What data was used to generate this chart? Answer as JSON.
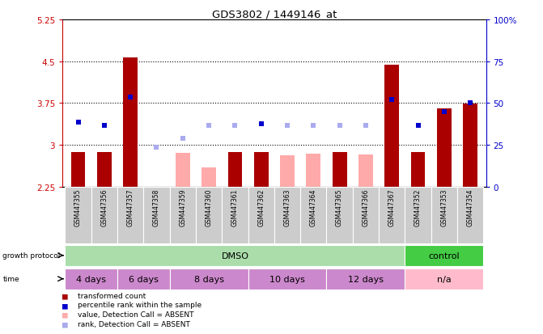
{
  "title": "GDS3802 / 1449146_at",
  "samples": [
    "GSM447355",
    "GSM447356",
    "GSM447357",
    "GSM447358",
    "GSM447359",
    "GSM447360",
    "GSM447361",
    "GSM447362",
    "GSM447363",
    "GSM447364",
    "GSM447365",
    "GSM447366",
    "GSM447367",
    "GSM447352",
    "GSM447353",
    "GSM447354"
  ],
  "transformed_count": [
    2.87,
    2.87,
    4.57,
    2.25,
    2.85,
    2.6,
    2.87,
    2.87,
    2.82,
    2.84,
    2.87,
    2.83,
    4.44,
    2.87,
    3.65,
    3.74
  ],
  "tc_absent": [
    false,
    false,
    false,
    true,
    true,
    true,
    false,
    false,
    true,
    true,
    false,
    true,
    false,
    false,
    false,
    false
  ],
  "percentile_rank_left": [
    3.4,
    3.35,
    3.85,
    2.96,
    3.12,
    3.35,
    3.35,
    3.38,
    3.35,
    3.35,
    3.35,
    3.35,
    3.82,
    3.35,
    3.6,
    3.75
  ],
  "pr_absent": [
    false,
    false,
    false,
    true,
    true,
    true,
    true,
    false,
    true,
    true,
    true,
    true,
    false,
    false,
    false,
    false
  ],
  "ylim_left": [
    2.25,
    5.25
  ],
  "ylim_right": [
    0,
    100
  ],
  "yticks_left": [
    2.25,
    3.0,
    3.75,
    4.5,
    5.25
  ],
  "yticks_right": [
    0,
    25,
    50,
    75,
    100
  ],
  "ytick_labels_left": [
    "2.25",
    "3",
    "3.75",
    "4.5",
    "5.25"
  ],
  "ytick_labels_right": [
    "0",
    "25",
    "50",
    "75",
    "100%"
  ],
  "hlines": [
    3.0,
    3.75,
    4.5
  ],
  "growth_protocol_groups": [
    {
      "label": "DMSO",
      "start": 0,
      "end": 12,
      "color": "#aaddaa"
    },
    {
      "label": "control",
      "start": 13,
      "end": 15,
      "color": "#44cc44"
    }
  ],
  "time_groups": [
    {
      "label": "4 days",
      "start": 0,
      "end": 1,
      "color": "#cc88cc"
    },
    {
      "label": "6 days",
      "start": 2,
      "end": 3,
      "color": "#cc88cc"
    },
    {
      "label": "8 days",
      "start": 4,
      "end": 6,
      "color": "#cc88cc"
    },
    {
      "label": "10 days",
      "start": 7,
      "end": 9,
      "color": "#cc88cc"
    },
    {
      "label": "12 days",
      "start": 10,
      "end": 12,
      "color": "#cc88cc"
    },
    {
      "label": "n/a",
      "start": 13,
      "end": 15,
      "color": "#ffbbcc"
    }
  ],
  "dark_red": "#AA0000",
  "pink_red": "#FFAAAA",
  "dark_blue": "#0000CC",
  "light_blue": "#AAAAEE",
  "right_axis_color": "#0000CC",
  "left_axis_color": "#CC0000"
}
